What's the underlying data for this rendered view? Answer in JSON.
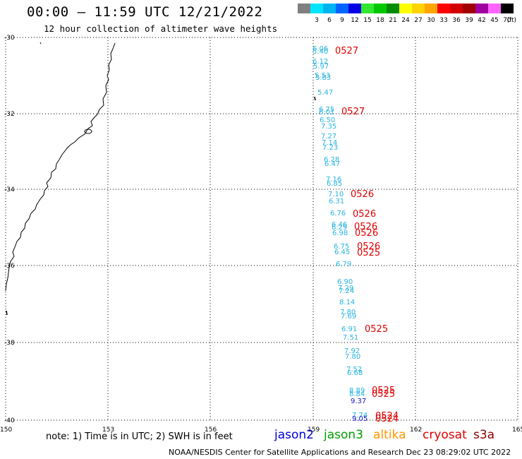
{
  "header": {
    "title": "00:00 — 11:59 UTC 12/21/2022",
    "subtitle": "12 hour collection of altimeter wave heights"
  },
  "color_scale": {
    "unit": "(ft)",
    "swatches": [
      {
        "label": "",
        "color": "#808080"
      },
      {
        "label": "3",
        "color": "#00e5ff"
      },
      {
        "label": "6",
        "color": "#00b4f0"
      },
      {
        "label": "9",
        "color": "#0064ff"
      },
      {
        "label": "12",
        "color": "#0000e6"
      },
      {
        "label": "15",
        "color": "#32e632"
      },
      {
        "label": "18",
        "color": "#00c800"
      },
      {
        "label": "21",
        "color": "#008c00"
      },
      {
        "label": "24",
        "color": "#ffff00"
      },
      {
        "label": "27",
        "color": "#ffd200"
      },
      {
        "label": "30",
        "color": "#ffa500"
      },
      {
        "label": "33",
        "color": "#ff0000"
      },
      {
        "label": "36",
        "color": "#d20000"
      },
      {
        "label": "39",
        "color": "#a00000"
      },
      {
        "label": "42",
        "color": "#a000a0"
      },
      {
        "label": "45",
        "color": "#ff64ff"
      },
      {
        "label": "70",
        "color": "#000000"
      }
    ]
  },
  "map": {
    "lat_labels": [
      "-30",
      "-32",
      "-34",
      "-36",
      "-38",
      "-40"
    ],
    "lon_labels": [
      "150",
      "153",
      "156",
      "159",
      "162",
      "165"
    ],
    "colors": {
      "obs": "#28b4e0",
      "track_time": "#e00000",
      "dark_obs": "#1414c8"
    },
    "observations": [
      {
        "text": "6.06",
        "dark": false
      },
      {
        "text": "5.40",
        "dark": false
      },
      {
        "text": "6.12",
        "dark": false
      },
      {
        "text": "5.97",
        "dark": false
      },
      {
        "text": "5.53",
        "dark": false
      },
      {
        "text": "5.83",
        "dark": false
      },
      {
        "text": "5.47",
        "dark": false
      },
      {
        "text": "6.75",
        "dark": false
      },
      {
        "text": "6.01",
        "dark": false
      },
      {
        "text": "6.50",
        "dark": false
      },
      {
        "text": "7.35",
        "dark": false
      },
      {
        "text": "7.27",
        "dark": false
      },
      {
        "text": "7.14",
        "dark": false
      },
      {
        "text": "7.23",
        "dark": false
      },
      {
        "text": "6.28",
        "dark": false
      },
      {
        "text": "6.47",
        "dark": false
      },
      {
        "text": "7.16",
        "dark": false
      },
      {
        "text": "6.85",
        "dark": false
      },
      {
        "text": "7.10",
        "dark": false
      },
      {
        "text": "6.31",
        "dark": false
      },
      {
        "text": "6.76",
        "dark": false
      },
      {
        "text": "6.46",
        "dark": false
      },
      {
        "text": "6.29",
        "dark": false
      },
      {
        "text": "6.98",
        "dark": false
      },
      {
        "text": "6.75",
        "dark": false
      },
      {
        "text": "6.45",
        "dark": false
      },
      {
        "text": "6.79",
        "dark": false
      },
      {
        "text": "6.90",
        "dark": false
      },
      {
        "text": "7.29",
        "dark": false
      },
      {
        "text": "7.24",
        "dark": false
      },
      {
        "text": "8.14",
        "dark": false
      },
      {
        "text": "7.80",
        "dark": false
      },
      {
        "text": "7.69",
        "dark": false
      },
      {
        "text": "6.91",
        "dark": false
      },
      {
        "text": "7.51",
        "dark": false
      },
      {
        "text": "7.92",
        "dark": false
      },
      {
        "text": "7.80",
        "dark": false
      },
      {
        "text": "7.52",
        "dark": false
      },
      {
        "text": "6.68",
        "dark": false
      },
      {
        "text": "8.89",
        "dark": false
      },
      {
        "text": "8.84",
        "dark": false
      },
      {
        "text": "9.37",
        "dark": true
      },
      {
        "text": "7.74",
        "dark": false
      },
      {
        "text": "9.05",
        "dark": true
      }
    ],
    "track_times": [
      "0527",
      "0527",
      "0526",
      "0526",
      "0526",
      "0526",
      "0526",
      "0525",
      "0525",
      "0525",
      "0525",
      "0524",
      "0524"
    ]
  },
  "footer": {
    "note": "note: 1) Time is in UTC; 2) SWH is in feet",
    "credit": "NOAA/NESDIS Center for Satellite Applications and Research    Dec 23 08:29:02 UTC 2022"
  },
  "satellites": [
    {
      "name": "jason2",
      "color": "#0000dc"
    },
    {
      "name": "jason3",
      "color": "#00a000"
    },
    {
      "name": "altika",
      "color": "#ff9600"
    },
    {
      "name": "cryosat",
      "color": "#e00000"
    },
    {
      "name": "s3a",
      "color": "#8b0000"
    }
  ]
}
